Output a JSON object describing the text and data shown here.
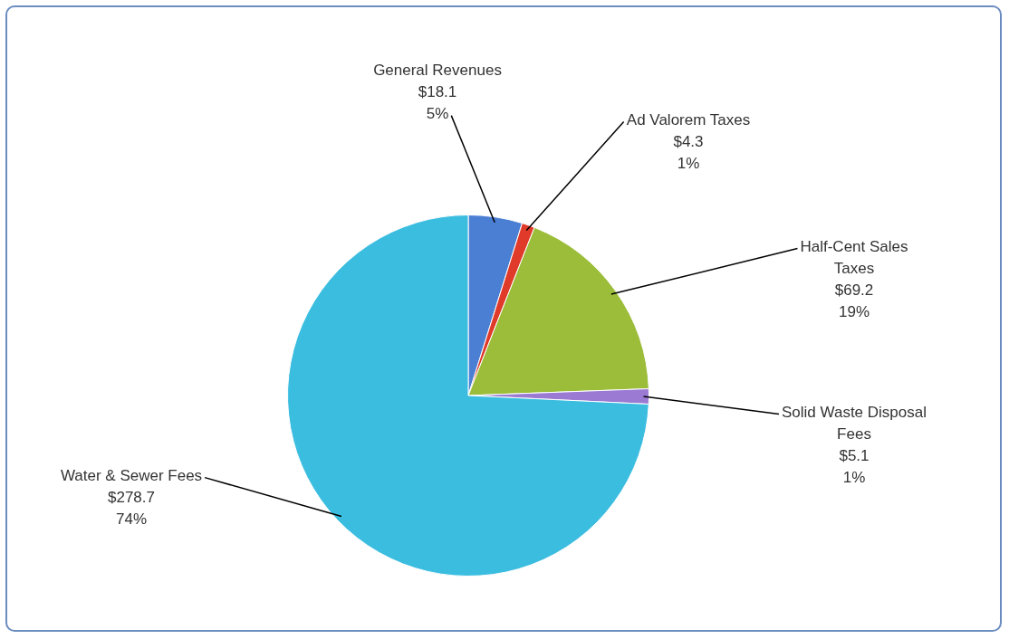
{
  "chart_data": {
    "type": "pie",
    "categories": [
      "General Revenues",
      "Ad Valorem Taxes",
      "Half-Cent Sales Taxes",
      "Solid Waste Disposal Fees",
      "Water & Sewer Fees"
    ],
    "values": [
      18.1,
      4.3,
      69.2,
      5.1,
      278.7
    ],
    "colors": [
      "#4a7fd4",
      "#e03a2a",
      "#9bbd3a",
      "#9b7ad4",
      "#3bbde0"
    ],
    "value_labels": [
      "$18.1\n5%",
      "$4.3\n1%",
      "$69.2\n19%",
      "$5.1\n1%",
      "$278.7\n74%"
    ],
    "legend": false
  }
}
